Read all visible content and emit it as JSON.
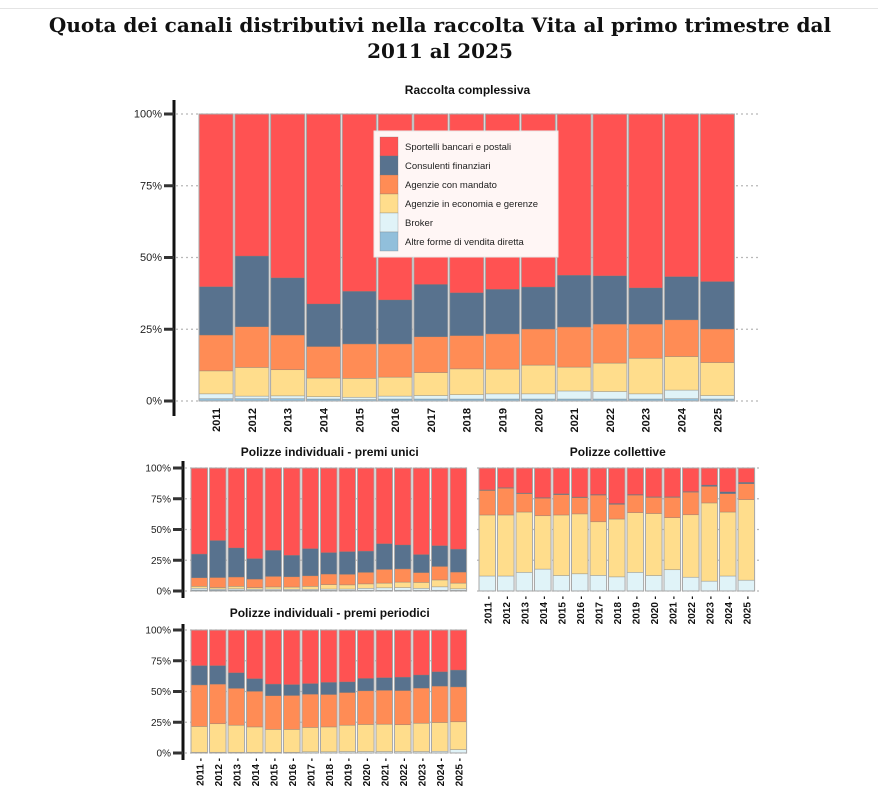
{
  "title": "Quota dei canali distributivi nella raccolta Vita al primo trimestre dal 2011 al 2025",
  "chart_data": {
    "type": "bar",
    "stacked": true,
    "normalized": true,
    "categories": [
      "2011",
      "2012",
      "2013",
      "2014",
      "2015",
      "2016",
      "2017",
      "2018",
      "2019",
      "2020",
      "2021",
      "2022",
      "2023",
      "2024",
      "2025"
    ],
    "y_ticks": [
      "0%",
      "25%",
      "50%",
      "75%",
      "100%"
    ],
    "ylim": [
      0,
      100
    ],
    "grid": "dotted horizontal",
    "legend": {
      "placement": "inside top-center of first panel",
      "entries": [
        {
          "name": "Sportelli bancari e postali",
          "color": "#FF5252"
        },
        {
          "name": "Consulenti finanziari",
          "color": "#58728E"
        },
        {
          "name": "Agenzie con mandato",
          "color": "#FF8C55"
        },
        {
          "name": "Agenzie in economia e gerenze",
          "color": "#FFDD8C"
        },
        {
          "name": "Broker",
          "color": "#E0F3F8"
        },
        {
          "name": "Altre forme di vendita diretta",
          "color": "#91BFDB"
        }
      ]
    },
    "series_order_bottom_to_top": [
      "Altre forme di vendita diretta",
      "Broker",
      "Agenzie in economia e gerenze",
      "Agenzie con mandato",
      "Consulenti finanziari",
      "Sportelli bancari e postali"
    ],
    "panels": [
      {
        "title": "Raccolta complessiva",
        "series": [
          {
            "name": "Altre forme di vendita diretta",
            "values": [
              0.8,
              0.8,
              0.8,
              0.7,
              0.5,
              0.7,
              0.7,
              0.7,
              0.7,
              0.7,
              0.7,
              0.7,
              0.7,
              0.8,
              0.7
            ]
          },
          {
            "name": "Broker",
            "values": [
              1.7,
              0.9,
              1.0,
              0.8,
              0.8,
              1.0,
              1.2,
              1.5,
              1.8,
              1.8,
              2.8,
              2.6,
              1.8,
              3.0,
              1.2
            ]
          },
          {
            "name": "Agenzie in economia e gerenze",
            "values": [
              8.0,
              10.0,
              9.1,
              6.5,
              6.6,
              6.6,
              8.0,
              9.0,
              8.6,
              10.0,
              8.3,
              9.9,
              12.4,
              11.7,
              11.5
            ]
          },
          {
            "name": "Agenzie con mandato",
            "values": [
              12.5,
              14.2,
              12.1,
              11.0,
              12.0,
              11.6,
              12.5,
              11.6,
              12.3,
              12.6,
              14.0,
              13.6,
              11.9,
              12.8,
              11.7
            ]
          },
          {
            "name": "Consulenti finanziari",
            "values": [
              16.8,
              24.6,
              19.9,
              14.8,
              18.3,
              15.3,
              18.2,
              14.9,
              15.5,
              14.6,
              18.0,
              16.8,
              12.6,
              15.0,
              16.5
            ]
          },
          {
            "name": "Sportelli bancari e postali",
            "values": [
              60.2,
              49.5,
              57.1,
              66.2,
              61.8,
              64.8,
              59.4,
              62.3,
              61.1,
              60.3,
              56.2,
              56.4,
              60.6,
              56.7,
              58.4
            ]
          }
        ]
      },
      {
        "title": "Polizze individuali - premi unici",
        "series": [
          {
            "name": "Altre forme di vendita diretta",
            "values": [
              0.8,
              0.8,
              0.8,
              0.7,
              0.6,
              0.6,
              0.6,
              0.6,
              0.6,
              0.6,
              0.6,
              0.6,
              0.6,
              0.6,
              0.6
            ]
          },
          {
            "name": "Broker",
            "values": [
              1.4,
              0.8,
              1.0,
              0.8,
              0.9,
              0.8,
              0.8,
              1.0,
              1.0,
              1.6,
              2.0,
              2.2,
              1.6,
              2.8,
              1.2
            ]
          },
          {
            "name": "Agenzie in economia e gerenze",
            "values": [
              1.6,
              1.2,
              2.0,
              1.2,
              1.8,
              1.8,
              2.4,
              3.6,
              3.4,
              3.6,
              3.8,
              4.4,
              4.8,
              5.6,
              4.6
            ]
          },
          {
            "name": "Agenzie con mandato",
            "values": [
              7.0,
              8.2,
              7.6,
              7.0,
              8.6,
              8.4,
              8.6,
              8.6,
              8.6,
              9.4,
              11.2,
              10.8,
              8.0,
              11.0,
              9.0
            ]
          },
          {
            "name": "Consulenti finanziari",
            "values": [
              19.2,
              30.0,
              23.6,
              16.6,
              21.1,
              17.4,
              22.0,
              17.4,
              18.4,
              17.2,
              20.8,
              19.4,
              14.6,
              16.8,
              18.6
            ]
          },
          {
            "name": "Sportelli bancari e postali",
            "values": [
              70.0,
              59.0,
              65.0,
              73.7,
              67.0,
              71.0,
              65.6,
              68.8,
              68.0,
              67.6,
              61.6,
              62.6,
              70.4,
              63.2,
              66.0
            ]
          }
        ]
      },
      {
        "title": "Polizze collettive",
        "series": [
          {
            "name": "Altre forme di vendita diretta",
            "values": [
              0.2,
              0.2,
              0.2,
              0.2,
              0.2,
              0.2,
              0.2,
              0.2,
              0.2,
              0.2,
              0.2,
              0.2,
              0.2,
              0.2,
              0.2
            ]
          },
          {
            "name": "Broker",
            "values": [
              12.0,
              12.0,
              15.0,
              17.6,
              12.4,
              13.8,
              12.5,
              11.3,
              15.0,
              12.4,
              17.1,
              11.0,
              7.8,
              12.0,
              8.6
            ]
          },
          {
            "name": "Agenzie in economia e gerenze",
            "values": [
              49.6,
              49.6,
              49.0,
              43.4,
              49.2,
              48.7,
              43.6,
              47.0,
              48.5,
              50.4,
              42.3,
              50.8,
              63.6,
              52.0,
              65.5
            ]
          },
          {
            "name": "Agenzie con mandato",
            "values": [
              20.0,
              21.8,
              15.0,
              14.3,
              16.6,
              13.3,
              21.7,
              12.0,
              14.3,
              13.2,
              16.6,
              18.4,
              13.5,
              15.0,
              13.0
            ]
          },
          {
            "name": "Consulenti finanziari",
            "values": [
              0.4,
              0.4,
              0.4,
              0.4,
              0.6,
              0.4,
              0.4,
              0.6,
              0.4,
              0.4,
              0.4,
              0.4,
              1.0,
              1.4,
              1.0
            ]
          },
          {
            "name": "Sportelli bancari e postali",
            "values": [
              17.8,
              16.0,
              20.4,
              24.1,
              21.0,
              23.6,
              21.6,
              28.9,
              21.6,
              23.4,
              23.4,
              19.2,
              13.9,
              19.4,
              11.7
            ]
          }
        ]
      },
      {
        "title": "Polizze individuali - premi periodici",
        "series": [
          {
            "name": "Altre forme di vendita diretta",
            "values": [
              0.2,
              0.2,
              0.2,
              0.2,
              0.2,
              0.2,
              0.2,
              0.2,
              0.2,
              0.2,
              0.2,
              0.2,
              0.2,
              0.2,
              0.2
            ]
          },
          {
            "name": "Broker",
            "values": [
              0.4,
              0.4,
              0.4,
              0.4,
              0.4,
              0.4,
              0.8,
              0.8,
              1.0,
              1.0,
              1.0,
              1.0,
              1.0,
              1.2,
              2.6
            ]
          },
          {
            "name": "Agenzie in economia e gerenze",
            "values": [
              21.0,
              23.2,
              22.0,
              20.6,
              18.6,
              18.6,
              19.8,
              20.2,
              21.4,
              22.0,
              22.2,
              21.8,
              23.0,
              23.4,
              22.6
            ]
          },
          {
            "name": "Agenzie con mandato",
            "values": [
              33.8,
              32.2,
              30.0,
              29.0,
              27.4,
              27.6,
              27.0,
              26.4,
              26.6,
              27.4,
              27.6,
              27.8,
              28.6,
              29.6,
              28.4
            ]
          },
          {
            "name": "Consulenti finanziari",
            "values": [
              15.6,
              15.0,
              12.6,
              10.2,
              9.4,
              8.8,
              8.6,
              9.8,
              8.6,
              10.0,
              10.2,
              10.8,
              10.6,
              11.6,
              13.6
            ]
          },
          {
            "name": "Sportelli bancari e postali",
            "values": [
              29.0,
              29.0,
              34.8,
              39.6,
              44.0,
              44.4,
              43.6,
              42.6,
              42.2,
              39.4,
              38.8,
              38.4,
              36.6,
              34.0,
              32.6
            ]
          }
        ]
      }
    ]
  }
}
